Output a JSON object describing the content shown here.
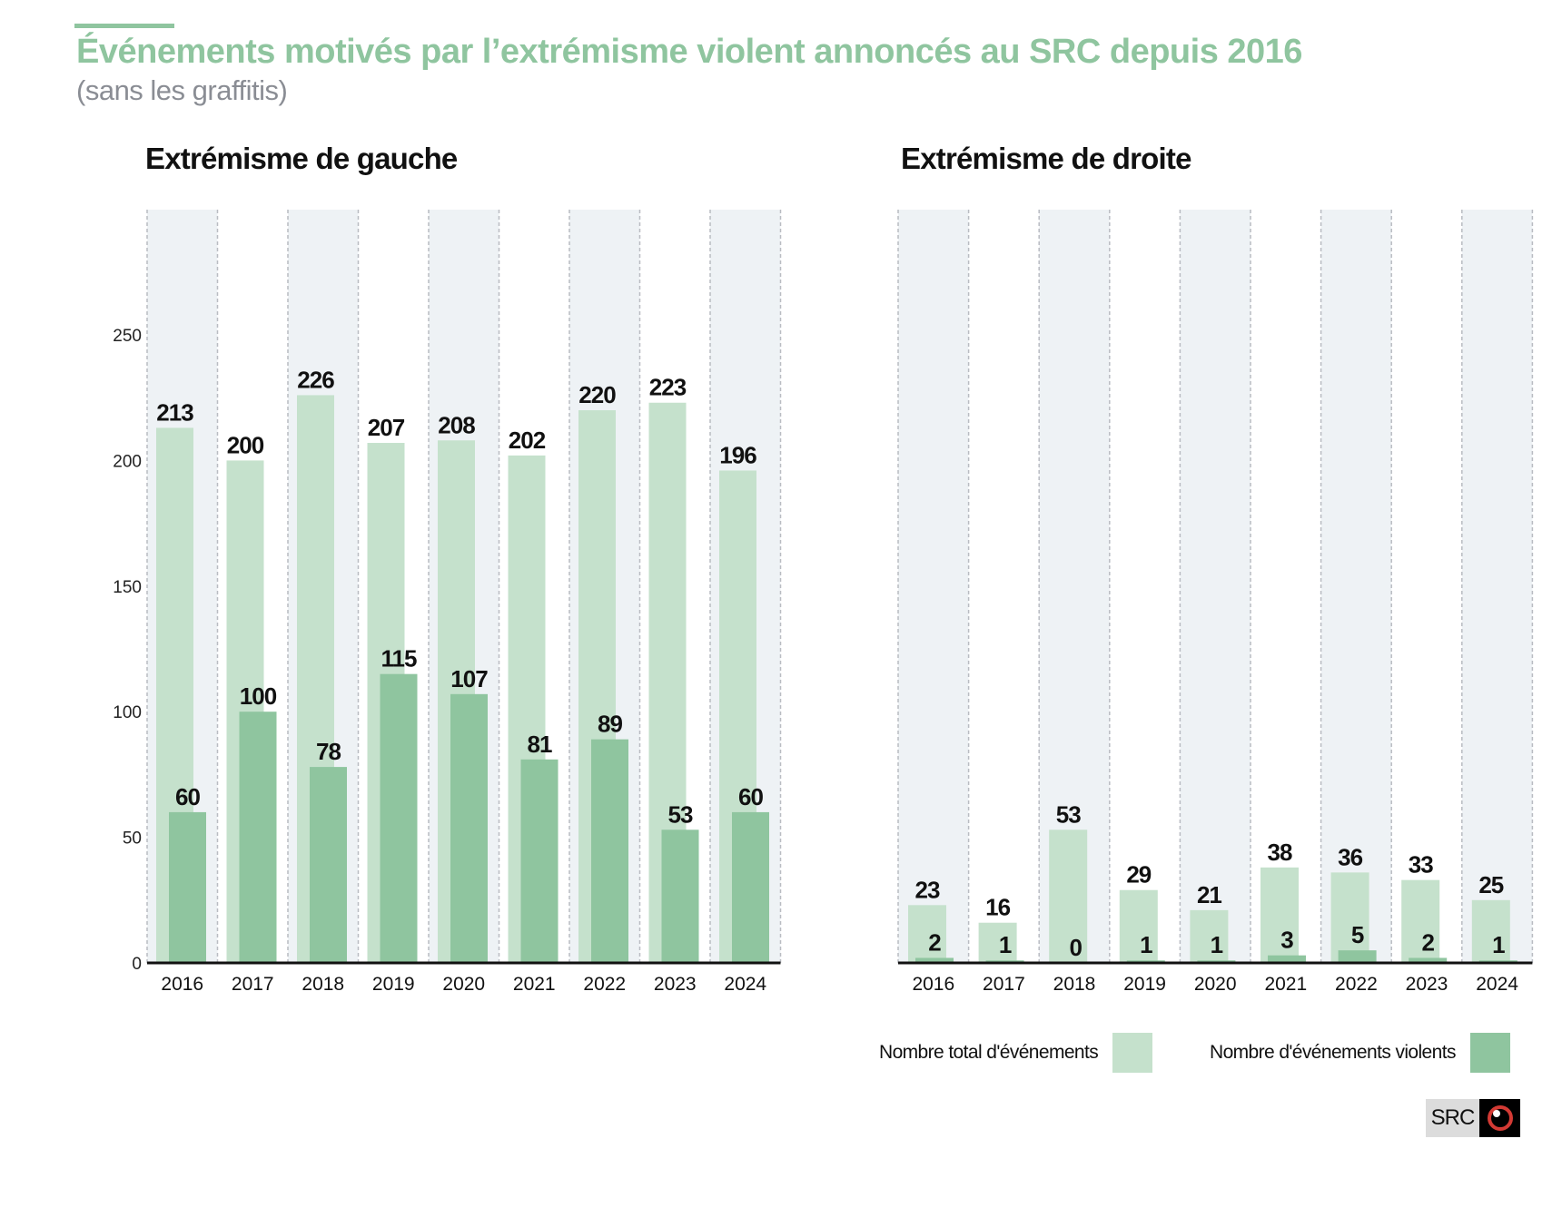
{
  "header": {
    "title": "Événements motivés par l’extrémisme violent annoncés au SRC depuis 2016",
    "subtitle": "(sans les graffitis)"
  },
  "colors": {
    "accent": "#8fc59f",
    "total_bar": "#c5e1cc",
    "violent_bar": "#8fc59f",
    "column_shade": "#eef2f5",
    "grid_dash": "#b9bcc2"
  },
  "legend": {
    "total_label": "Nombre total d'événements",
    "violent_label": "Nombre d'événements violents"
  },
  "logo": {
    "text": "SRC",
    "icon": "eye-icon"
  },
  "chart_data": [
    {
      "type": "bar",
      "title": "Extrémisme de gauche",
      "xlabel": "",
      "ylabel": "",
      "ylim": [
        0,
        250
      ],
      "yticks": [
        0,
        50,
        100,
        150,
        200,
        250
      ],
      "grid": "vertical dashed column separators, alternating shaded columns",
      "categories": [
        "2016",
        "2017",
        "2018",
        "2019",
        "2020",
        "2021",
        "2022",
        "2023",
        "2024"
      ],
      "series": [
        {
          "name": "Nombre total d'événements",
          "values": [
            213,
            200,
            226,
            207,
            208,
            202,
            220,
            223,
            196
          ]
        },
        {
          "name": "Nombre d'événements violents",
          "values": [
            60,
            100,
            78,
            115,
            107,
            81,
            89,
            53,
            60
          ]
        }
      ],
      "legend": "bottom-right"
    },
    {
      "type": "bar",
      "title": "Extrémisme de droite",
      "xlabel": "",
      "ylabel": "",
      "ylim": [
        0,
        250
      ],
      "yticks": [],
      "grid": "vertical dashed column separators, alternating shaded columns",
      "categories": [
        "2016",
        "2017",
        "2018",
        "2019",
        "2020",
        "2021",
        "2022",
        "2023",
        "2024"
      ],
      "series": [
        {
          "name": "Nombre total d'événements",
          "values": [
            23,
            16,
            53,
            29,
            21,
            38,
            36,
            33,
            25
          ]
        },
        {
          "name": "Nombre d'événements violents",
          "values": [
            2,
            1,
            0,
            1,
            1,
            3,
            5,
            2,
            1
          ]
        }
      ],
      "legend": "bottom-right"
    }
  ]
}
